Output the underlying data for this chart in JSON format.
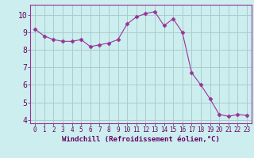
{
  "x": [
    0,
    1,
    2,
    3,
    4,
    5,
    6,
    7,
    8,
    9,
    10,
    11,
    12,
    13,
    14,
    15,
    16,
    17,
    18,
    19,
    20,
    21,
    22,
    23
  ],
  "y": [
    9.2,
    8.8,
    8.6,
    8.5,
    8.5,
    8.6,
    8.2,
    8.3,
    8.4,
    8.6,
    9.5,
    9.9,
    10.1,
    10.2,
    9.4,
    9.8,
    9.0,
    6.7,
    6.0,
    5.2,
    4.3,
    4.2,
    4.3,
    4.25
  ],
  "line_color": "#993399",
  "marker": "D",
  "marker_size": 2.5,
  "bg_color": "#cceeee",
  "grid_color": "#aacccc",
  "xlabel": "Windchill (Refroidissement éolien,°C)",
  "ylabel": "",
  "xlim": [
    -0.5,
    23.5
  ],
  "ylim": [
    3.8,
    10.6
  ],
  "yticks": [
    4,
    5,
    6,
    7,
    8,
    9,
    10
  ],
  "xticks": [
    0,
    1,
    2,
    3,
    4,
    5,
    6,
    7,
    8,
    9,
    10,
    11,
    12,
    13,
    14,
    15,
    16,
    17,
    18,
    19,
    20,
    21,
    22,
    23
  ],
  "label_color": "#660066",
  "tick_color": "#660066",
  "axis_color": "#993399",
  "xlabel_fontsize": 6.5,
  "ytick_fontsize": 7,
  "xtick_fontsize": 5.5
}
